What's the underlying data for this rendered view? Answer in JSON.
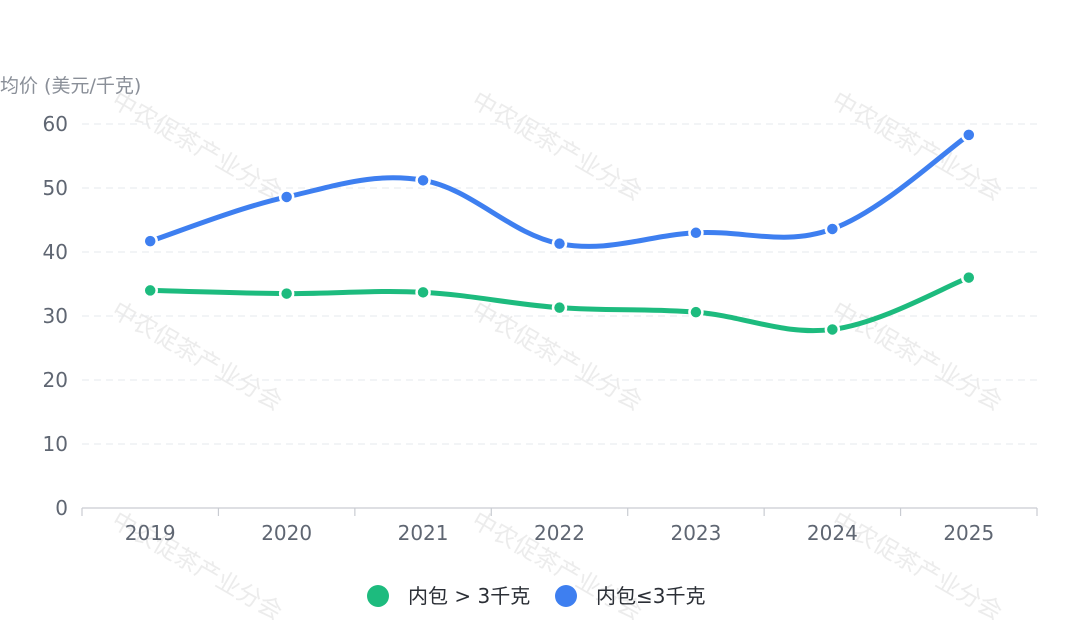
{
  "chart_data": {
    "type": "line",
    "ylabel": "均价 (美元/千克)",
    "ylim": [
      0,
      60
    ],
    "yticks": [
      0,
      10,
      20,
      30,
      40,
      50,
      60
    ],
    "categories": [
      "2019",
      "2020",
      "2021",
      "2022",
      "2023",
      "2024",
      "2025"
    ],
    "series": [
      {
        "name": "内包 > 3千克",
        "color": "#1dbb7e",
        "values": [
          34.0,
          33.5,
          33.7,
          31.3,
          30.6,
          27.9,
          36.0
        ]
      },
      {
        "name": "内包≤3千克",
        "color": "#3e7ff0",
        "values": [
          41.7,
          48.6,
          51.2,
          41.3,
          43.0,
          43.6,
          58.3
        ]
      }
    ],
    "grid": true,
    "legend_position": "bottom-center"
  },
  "watermark": "中农促茶产业分会"
}
